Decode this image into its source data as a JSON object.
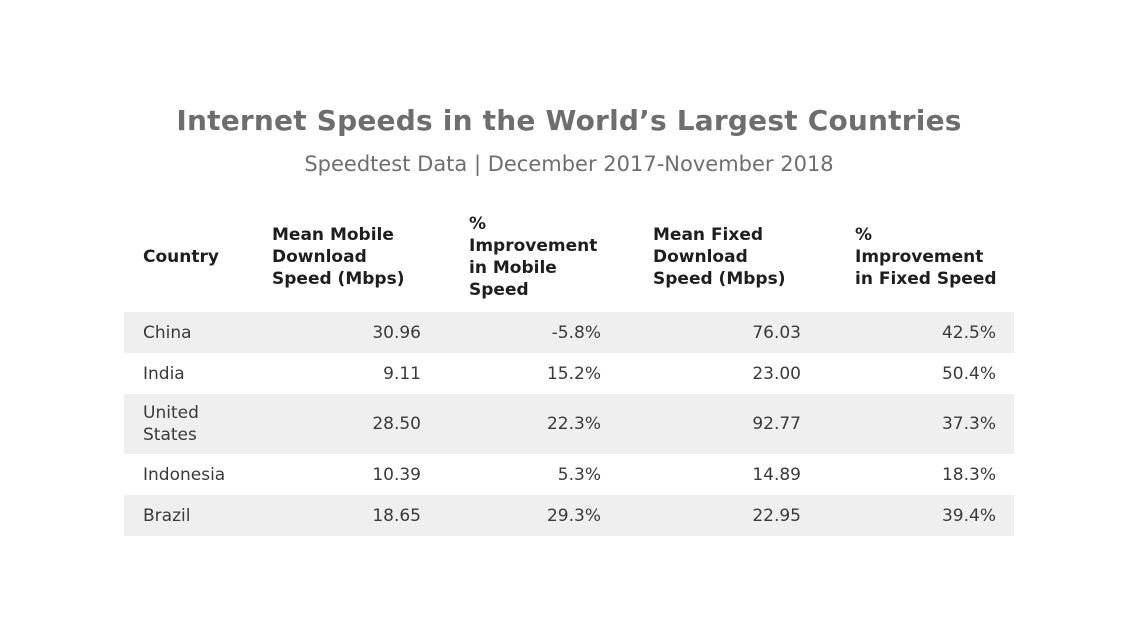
{
  "title": "Internet Speeds in the World’s Largest Countries",
  "subtitle": "Speedtest Data | December 2017-November 2018",
  "table": {
    "headers": [
      "Country",
      "Mean Mobile Download Speed (Mbps)",
      "% Improvement in Mobile Speed",
      "Mean Fixed Download Speed (Mbps)",
      "% Improvement in Fixed Speed"
    ],
    "rows": [
      [
        "China",
        "30.96",
        "-5.8%",
        "76.03",
        "42.5%"
      ],
      [
        "India",
        "9.11",
        "15.2%",
        "23.00",
        "50.4%"
      ],
      [
        "United States",
        "28.50",
        "22.3%",
        "92.77",
        "37.3%"
      ],
      [
        "Indonesia",
        "10.39",
        "5.3%",
        "14.89",
        "18.3%"
      ],
      [
        "Brazil",
        "18.65",
        "29.3%",
        "22.95",
        "39.4%"
      ]
    ]
  }
}
